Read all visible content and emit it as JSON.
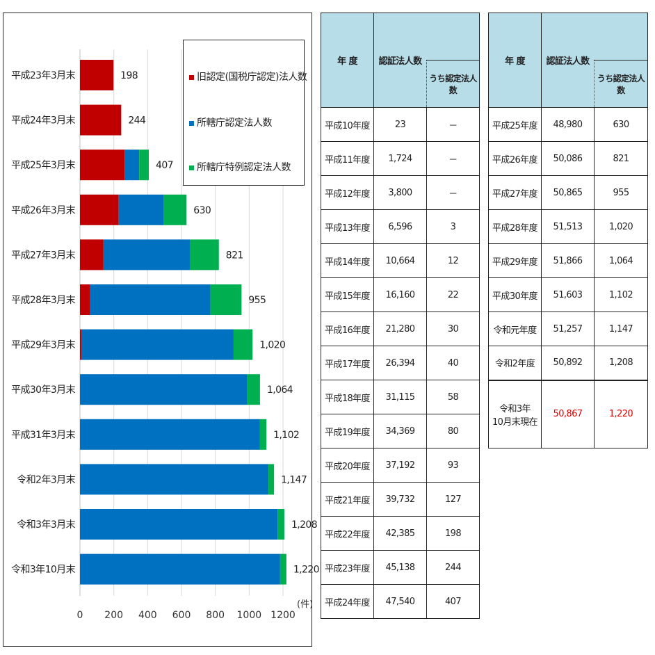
{
  "colors": {
    "old_certified": "#c00000",
    "jurisdiction_certified": "#0070c0",
    "special_certified": "#00b050",
    "table_header_bg": "#b7dde8",
    "highlight": "#e00000"
  },
  "chart_data": {
    "type": "bar",
    "orientation": "horizontal",
    "stacked": true,
    "categories": [
      "平成23年3月末",
      "平成24年3月末",
      "平成25年3月末",
      "平成26年3月末",
      "平成27年3月末",
      "平成28年3月末",
      "平成29年3月末",
      "平成30年3月末",
      "平成31年3月末",
      "令和2年3月末",
      "令和3年3月末",
      "令和3年10月末"
    ],
    "series": [
      {
        "name": "旧認定(国税庁認定)法人数",
        "color": "#c00000",
        "values": [
          198,
          244,
          264,
          229,
          139,
          60,
          8,
          0,
          0,
          0,
          0,
          0
        ]
      },
      {
        "name": "所轄庁認定法人数",
        "color": "#0070c0",
        "values": [
          0,
          0,
          86,
          267,
          512,
          711,
          900,
          989,
          1064,
          1114,
          1168,
          1183
        ]
      },
      {
        "name": "所轄庁特例認定法人数",
        "color": "#00b050",
        "values": [
          0,
          0,
          57,
          134,
          170,
          184,
          112,
          75,
          38,
          33,
          40,
          37
        ]
      }
    ],
    "totals": [
      "198",
      "244",
      "407",
      "630",
      "821",
      "955",
      "1,020",
      "1,064",
      "1,102",
      "1,147",
      "1,208",
      "1,220"
    ],
    "xlim": [
      0,
      1200
    ],
    "xticks": [
      "0",
      "200",
      "400",
      "600",
      "800",
      "1000",
      "1200"
    ],
    "unit_label": "(件)",
    "legend_position": "top-right",
    "grid": true
  },
  "table1": {
    "header_year": "年 度",
    "header_count": "認証法人数",
    "header_sub": "うち認定法人数",
    "rows": [
      {
        "year": "平成10年度",
        "count": "23",
        "certified": "－"
      },
      {
        "year": "平成11年度",
        "count": "1,724",
        "certified": "－"
      },
      {
        "year": "平成12年度",
        "count": "3,800",
        "certified": "－"
      },
      {
        "year": "平成13年度",
        "count": "6,596",
        "certified": "3"
      },
      {
        "year": "平成14年度",
        "count": "10,664",
        "certified": "12"
      },
      {
        "year": "平成15年度",
        "count": "16,160",
        "certified": "22"
      },
      {
        "year": "平成16年度",
        "count": "21,280",
        "certified": "30"
      },
      {
        "year": "平成17年度",
        "count": "26,394",
        "certified": "40"
      },
      {
        "year": "平成18年度",
        "count": "31,115",
        "certified": "58"
      },
      {
        "year": "平成19年度",
        "count": "34,369",
        "certified": "80"
      },
      {
        "year": "平成20年度",
        "count": "37,192",
        "certified": "93"
      },
      {
        "year": "平成21年度",
        "count": "39,732",
        "certified": "127"
      },
      {
        "year": "平成22年度",
        "count": "42,385",
        "certified": "198"
      },
      {
        "year": "平成23年度",
        "count": "45,138",
        "certified": "244"
      },
      {
        "year": "平成24年度",
        "count": "47,540",
        "certified": "407"
      }
    ]
  },
  "table2": {
    "header_year": "年 度",
    "header_count": "認証法人数",
    "header_sub": "うち認定法人数",
    "rows": [
      {
        "year": "平成25年度",
        "count": "48,980",
        "certified": "630"
      },
      {
        "year": "平成26年度",
        "count": "50,086",
        "certified": "821"
      },
      {
        "year": "平成27年度",
        "count": "50,865",
        "certified": "955"
      },
      {
        "year": "平成28年度",
        "count": "51,513",
        "certified": "1,020"
      },
      {
        "year": "平成29年度",
        "count": "51,866",
        "certified": "1,064"
      },
      {
        "year": "平成30年度",
        "count": "51,603",
        "certified": "1,102"
      },
      {
        "year": "令和元年度",
        "count": "51,257",
        "certified": "1,147"
      },
      {
        "year": "令和2年度",
        "count": "50,892",
        "certified": "1,208"
      }
    ],
    "current": {
      "year_line1": "令和3年",
      "year_line2": "10月末現在",
      "count": "50,867",
      "certified": "1,220"
    }
  }
}
